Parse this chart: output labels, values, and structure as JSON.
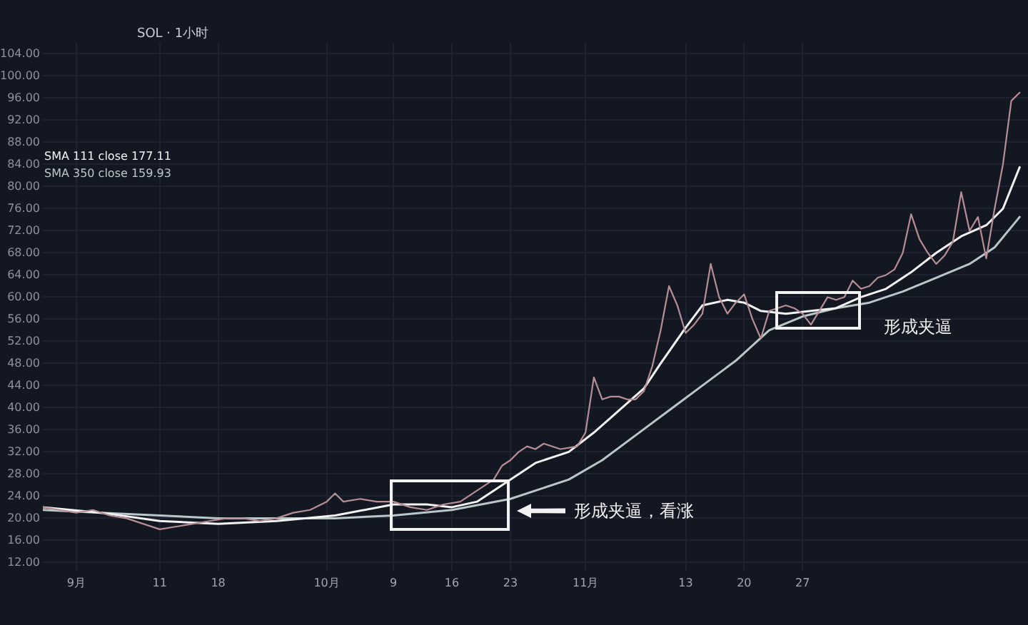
{
  "chart_data": {
    "type": "line",
    "title": "SOL · 1小时",
    "series": [
      {
        "color": "#b78e96",
        "x": [
          "--08-28",
          "--08-30",
          "--09-01",
          "--09-03",
          "--09-05",
          "--09-07",
          "--09-09",
          "--09-11",
          "--09-13",
          "--09-15",
          "--09-17",
          "--09-19",
          "--09-21",
          "--09-23",
          "--09-25",
          "--09-27",
          "--09-29",
          "--10-01",
          "--10-02",
          "--10-03",
          "--10-05",
          "--10-07",
          "--10-09",
          "--10-11",
          "--10-13",
          "--10-15",
          "--10-17",
          "--10-19",
          "--10-20",
          "--10-21",
          "--10-22",
          "--10-23",
          "--10-24",
          "--10-25",
          "--10-26",
          "--10-27",
          "--10-29",
          "--10-31",
          "--11-01",
          "--11-02",
          "--11-03",
          "--11-04",
          "--11-05",
          "--11-06",
          "--11-07",
          "--11-08",
          "--11-09",
          "--11-10",
          "--11-11",
          "--11-12",
          "--11-13",
          "--11-14",
          "--11-15",
          "--11-16",
          "--11-17",
          "--11-18",
          "--11-19",
          "--11-20",
          "--11-21",
          "--11-22",
          "--11-23",
          "--11-24",
          "--11-25",
          "--11-26",
          "--11-27",
          "--11-28",
          "--11-29",
          "--11-30",
          "--12-01",
          "--12-02",
          "--12-03",
          "--12-04",
          "--12-05",
          "--12-06",
          "--12-07",
          "--12-08",
          "--12-09",
          "--12-10",
          "--12-11",
          "--12-12",
          "--12-13",
          "--12-14",
          "--12-15",
          "--12-16",
          "--12-17",
          "--12-18",
          "--12-19",
          "--12-20",
          "--12-21",
          "--12-22",
          "--12-23"
        ],
        "values": [
          22,
          21.5,
          21,
          21.5,
          20.5,
          20,
          19,
          18,
          18.5,
          19,
          19.5,
          20,
          20,
          19.5,
          20,
          21,
          21.5,
          23,
          24.5,
          23,
          23.5,
          23,
          23,
          22,
          21.5,
          22.5,
          23,
          25,
          26,
          27,
          29.5,
          30.5,
          32,
          33,
          32.5,
          33.5,
          32.5,
          33,
          35.5,
          45.5,
          41.5,
          42,
          42,
          41.5,
          41.5,
          43,
          47.5,
          54,
          62,
          58.5,
          53.5,
          55,
          57,
          66,
          60,
          57,
          59,
          60.5,
          56,
          52.5,
          57.5,
          58,
          58.5,
          58,
          57,
          55,
          57.5,
          60,
          59.5,
          60,
          63,
          61.5,
          62,
          63.5,
          64,
          65,
          68,
          75,
          70.5,
          68,
          66,
          67.5,
          70,
          79,
          72,
          74.5,
          67,
          76,
          84,
          95.5,
          97
        ]
      },
      {
        "name": "SMA 111 close 177.11",
        "color": "#f2f2f2",
        "x": [
          "--08-28",
          "--09-04",
          "--09-11",
          "--09-18",
          "--09-25",
          "--10-02",
          "--10-09",
          "--10-13",
          "--10-16",
          "--10-19",
          "--10-23",
          "--10-26",
          "--10-30",
          "--11-02",
          "--11-05",
          "--11-08",
          "--11-10",
          "--11-13",
          "--11-15",
          "--11-18",
          "--11-20",
          "--11-22",
          "--11-25",
          "--11-28",
          "--12-01",
          "--12-04",
          "--12-07",
          "--12-10",
          "--12-13",
          "--12-16",
          "--12-19",
          "--12-21",
          "--12-23"
        ],
        "values": [
          22,
          21,
          19.5,
          19,
          19.5,
          20.5,
          22.5,
          22.5,
          22,
          23,
          27,
          30,
          32,
          35.5,
          39.5,
          43.5,
          48,
          54.5,
          58.5,
          59.5,
          59,
          57.5,
          57,
          57.5,
          58,
          60,
          61.5,
          64.5,
          68,
          71,
          73,
          76,
          83.5
        ]
      },
      {
        "name": "SMA 350 close 159.93",
        "color": "#b9c7c9",
        "x": [
          "--08-28",
          "--09-04",
          "--09-11",
          "--09-18",
          "--09-25",
          "--10-02",
          "--10-09",
          "--10-16",
          "--10-23",
          "--10-30",
          "--11-03",
          "--11-07",
          "--11-11",
          "--11-15",
          "--11-19",
          "--11-23",
          "--11-27",
          "--12-01",
          "--12-05",
          "--12-09",
          "--12-13",
          "--12-17",
          "--12-20",
          "--12-23"
        ],
        "values": [
          21.5,
          21,
          20.5,
          20,
          20,
          20,
          20.5,
          21.5,
          23.5,
          27,
          30.5,
          35,
          39.5,
          44,
          48.5,
          54,
          56.5,
          58,
          59,
          61,
          63.5,
          66,
          69,
          74.5
        ]
      }
    ],
    "xlim": [
      "--08-28",
      "--12-24"
    ],
    "xticks": [
      {
        "value": "--09-01",
        "label": "9月"
      },
      {
        "value": "--09-11",
        "label": "11"
      },
      {
        "value": "--09-18",
        "label": "18"
      },
      {
        "value": "--10-01",
        "label": "10月"
      },
      {
        "value": "--10-09",
        "label": "9"
      },
      {
        "value": "--10-16",
        "label": "16"
      },
      {
        "value": "--10-23",
        "label": "23"
      },
      {
        "value": "--11-01",
        "label": "11月"
      },
      {
        "value": "--11-13",
        "label": "13"
      },
      {
        "value": "--11-20",
        "label": "20"
      },
      {
        "value": "--11-27",
        "label": "27"
      }
    ],
    "ylim": [
      10.5,
      106
    ],
    "yticks": [
      {
        "value": 12,
        "label": "12.00"
      },
      {
        "value": 16,
        "label": "16.00"
      },
      {
        "value": 20,
        "label": "20.00"
      },
      {
        "value": 24,
        "label": "24.00"
      },
      {
        "value": 28,
        "label": "28.00"
      },
      {
        "value": 32,
        "label": "32.00"
      },
      {
        "value": 36,
        "label": "36.00"
      },
      {
        "value": 40,
        "label": "40.00"
      },
      {
        "value": 44,
        "label": "44.00"
      },
      {
        "value": 48,
        "label": "48.00"
      },
      {
        "value": 52,
        "label": "52.00"
      },
      {
        "value": 56,
        "label": "56.00"
      },
      {
        "value": 60,
        "label": "60.00"
      },
      {
        "value": 64,
        "label": "64.00"
      },
      {
        "value": 68,
        "label": "68.00"
      },
      {
        "value": 72,
        "label": "72.00"
      },
      {
        "value": 76,
        "label": "76.00"
      },
      {
        "value": 80,
        "label": "80.00"
      },
      {
        "value": 84,
        "label": "84.00"
      },
      {
        "value": 88,
        "label": "88.00"
      },
      {
        "value": 92,
        "label": "92.00"
      },
      {
        "value": 96,
        "label": "96.00"
      },
      {
        "value": 100,
        "label": "100.00"
      },
      {
        "value": 104,
        "label": "104.00"
      }
    ],
    "grid": true,
    "legend": "top left",
    "marker": "none",
    "line_style": "solid",
    "annotations": [
      "形成夹逼，看涨",
      "形成夹逼"
    ]
  }
}
